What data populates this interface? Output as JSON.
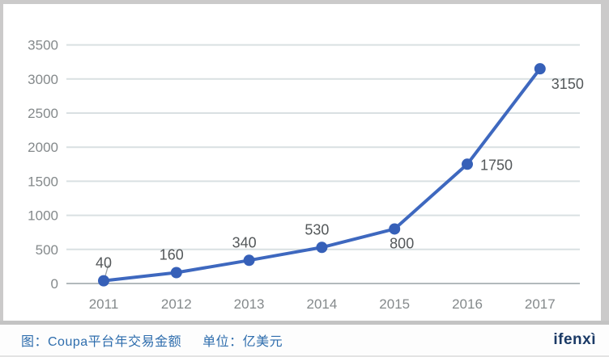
{
  "chart_data": {
    "type": "line",
    "title": "Coupa平台年交易金额",
    "unit": "亿美元",
    "x": [
      "2011",
      "2012",
      "2013",
      "2014",
      "2015",
      "2016",
      "2017"
    ],
    "values": [
      40,
      160,
      340,
      530,
      800,
      1750,
      3150
    ],
    "point_labels": [
      "40",
      "160",
      "340",
      "530",
      "800",
      "1750",
      "3150"
    ],
    "label_positions": [
      "above",
      "above",
      "above",
      "above",
      "below",
      "right",
      "right-below"
    ],
    "ylim": [
      0,
      3500
    ],
    "yticks": [
      0,
      500,
      1000,
      1500,
      2000,
      2500,
      3000,
      3500
    ],
    "grid": true,
    "legend_position": "none",
    "colors": {
      "line": "#3e68bf",
      "marker": "#3660b8",
      "grid": "#d9e0e2",
      "axis": "#b2b9bc",
      "tick_text": "#84898b",
      "data_label": "#54585a"
    }
  },
  "footer": {
    "caption_main": "图：Coupa平台年交易金额",
    "caption_unit": "单位：亿美元",
    "logo": "ifenxì"
  }
}
